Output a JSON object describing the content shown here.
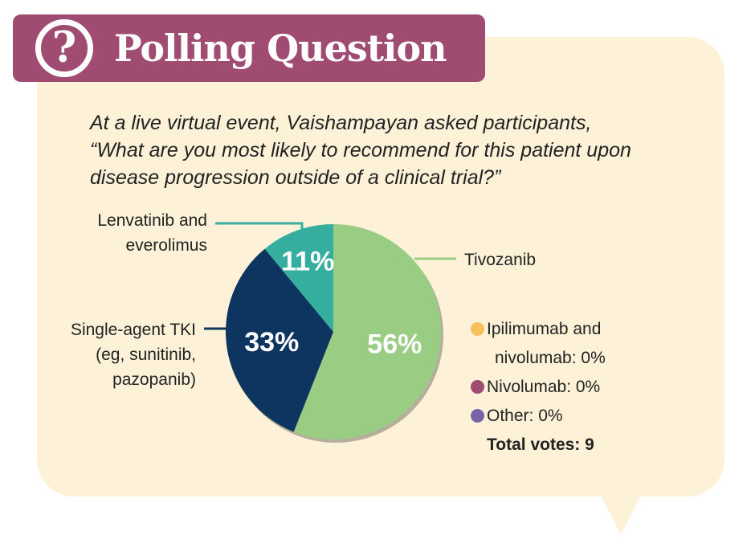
{
  "header": {
    "title": "Polling Question",
    "icon": "question-icon"
  },
  "intro": {
    "lines": [
      "At a live virtual event, Vaishampayan asked participants,",
      "“What are you most likely to recommend for this patient upon",
      "disease progression outside of a clinical trial?”"
    ]
  },
  "chart_data": {
    "type": "pie",
    "title": "",
    "slices": [
      {
        "name": "Tivozanib",
        "value": 56,
        "label": "56%",
        "color": "#9acd84"
      },
      {
        "name": "Single-agent TKI (eg, sunitinib, pazopanib)",
        "value": 33,
        "label": "33%",
        "color": "#0e3560"
      },
      {
        "name": "Lenvatinib and everolimus",
        "value": 11,
        "label": "11%",
        "color": "#35aea0"
      }
    ],
    "zero_items": [
      {
        "name": "Ipilimumab and nivolumab",
        "value": 0,
        "color": "#f7c15c"
      },
      {
        "name": "Nivolumab",
        "value": 0,
        "color": "#a04b72"
      },
      {
        "name": "Other",
        "value": 0,
        "color": "#7a62a6"
      }
    ],
    "total_votes": 9
  },
  "labels": {
    "lenvatinib_line1": "Lenvatinib and",
    "lenvatinib_line2": "everolimus",
    "tivozanib": "Tivozanib",
    "tki_line1": "Single-agent TKI",
    "tki_line2": "(eg, sunitinib,",
    "tki_line3": "pazopanib)"
  },
  "legend": {
    "ipi_line1": "Ipilimumab and",
    "ipi_line2": "nivolumab: 0%",
    "nivo": "Nivolumab: 0%",
    "other": "Other: 0%",
    "total": "Total votes: 9"
  },
  "colors": {
    "brand": "#a04b72",
    "bubble": "#fdf1d8",
    "leader_lenvatinib": "#35aea0",
    "leader_tivozanib": "#9acd84",
    "leader_tki": "#0e3560"
  }
}
